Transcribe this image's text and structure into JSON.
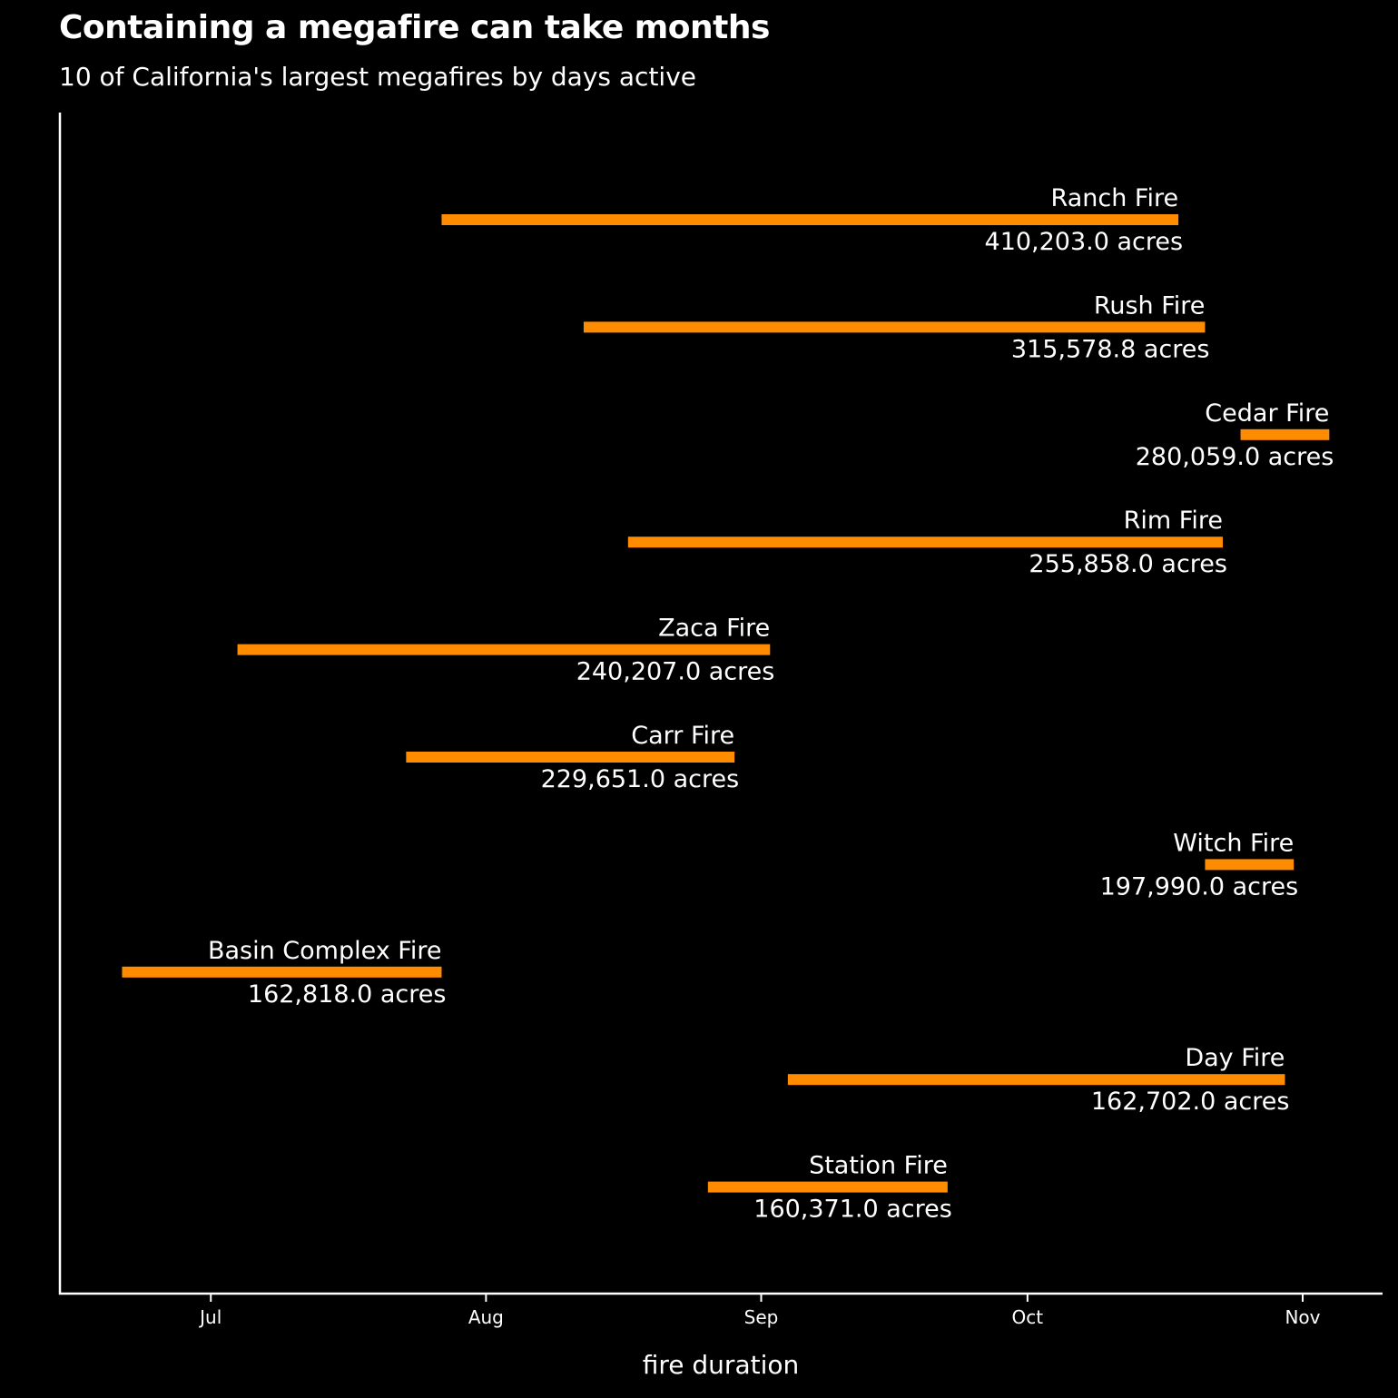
{
  "chart_data": {
    "type": "bar",
    "orientation": "horizontal-range",
    "title": "Containing a megafire can take months",
    "subtitle": "10 of California's largest megafires by days active",
    "xlabel": "fire duration",
    "ylabel": "",
    "x_ticks": [
      {
        "label": "Jul",
        "date": "07-01"
      },
      {
        "label": "Aug",
        "date": "08-01"
      },
      {
        "label": "Sep",
        "date": "09-01"
      },
      {
        "label": "Oct",
        "date": "10-01"
      },
      {
        "label": "Nov",
        "date": "11-01"
      }
    ],
    "xlim": [
      "06-14",
      "11-10"
    ],
    "bar_color": "#ff8c00",
    "grid": false,
    "legend": "none",
    "fires": [
      {
        "name": "Ranch Fire",
        "acres_label": "410,203.0 acres",
        "acres": 410203.0,
        "start": "07-27",
        "end": "10-18"
      },
      {
        "name": "Rush Fire",
        "acres_label": "315,578.8 acres",
        "acres": 315578.8,
        "start": "08-12",
        "end": "10-21"
      },
      {
        "name": "Cedar Fire",
        "acres_label": "280,059.0 acres",
        "acres": 280059.0,
        "start": "10-25",
        "end": "11-04"
      },
      {
        "name": "Rim Fire",
        "acres_label": "255,858.0 acres",
        "acres": 255858.0,
        "start": "08-17",
        "end": "10-23"
      },
      {
        "name": "Zaca Fire",
        "acres_label": "240,207.0 acres",
        "acres": 240207.0,
        "start": "07-04",
        "end": "09-02"
      },
      {
        "name": "Carr Fire",
        "acres_label": "229,651.0 acres",
        "acres": 229651.0,
        "start": "07-23",
        "end": "08-29"
      },
      {
        "name": "Witch Fire",
        "acres_label": "197,990.0 acres",
        "acres": 197990.0,
        "start": "10-21",
        "end": "10-31"
      },
      {
        "name": "Basin Complex Fire",
        "acres_label": "162,818.0 acres",
        "acres": 162818.0,
        "start": "06-21",
        "end": "07-27"
      },
      {
        "name": "Day Fire",
        "acres_label": "162,702.0 acres",
        "acres": 162702.0,
        "start": "09-04",
        "end": "10-30"
      },
      {
        "name": "Station Fire",
        "acres_label": "160,371.0 acres",
        "acres": 160371.0,
        "start": "08-26",
        "end": "09-22"
      }
    ]
  }
}
